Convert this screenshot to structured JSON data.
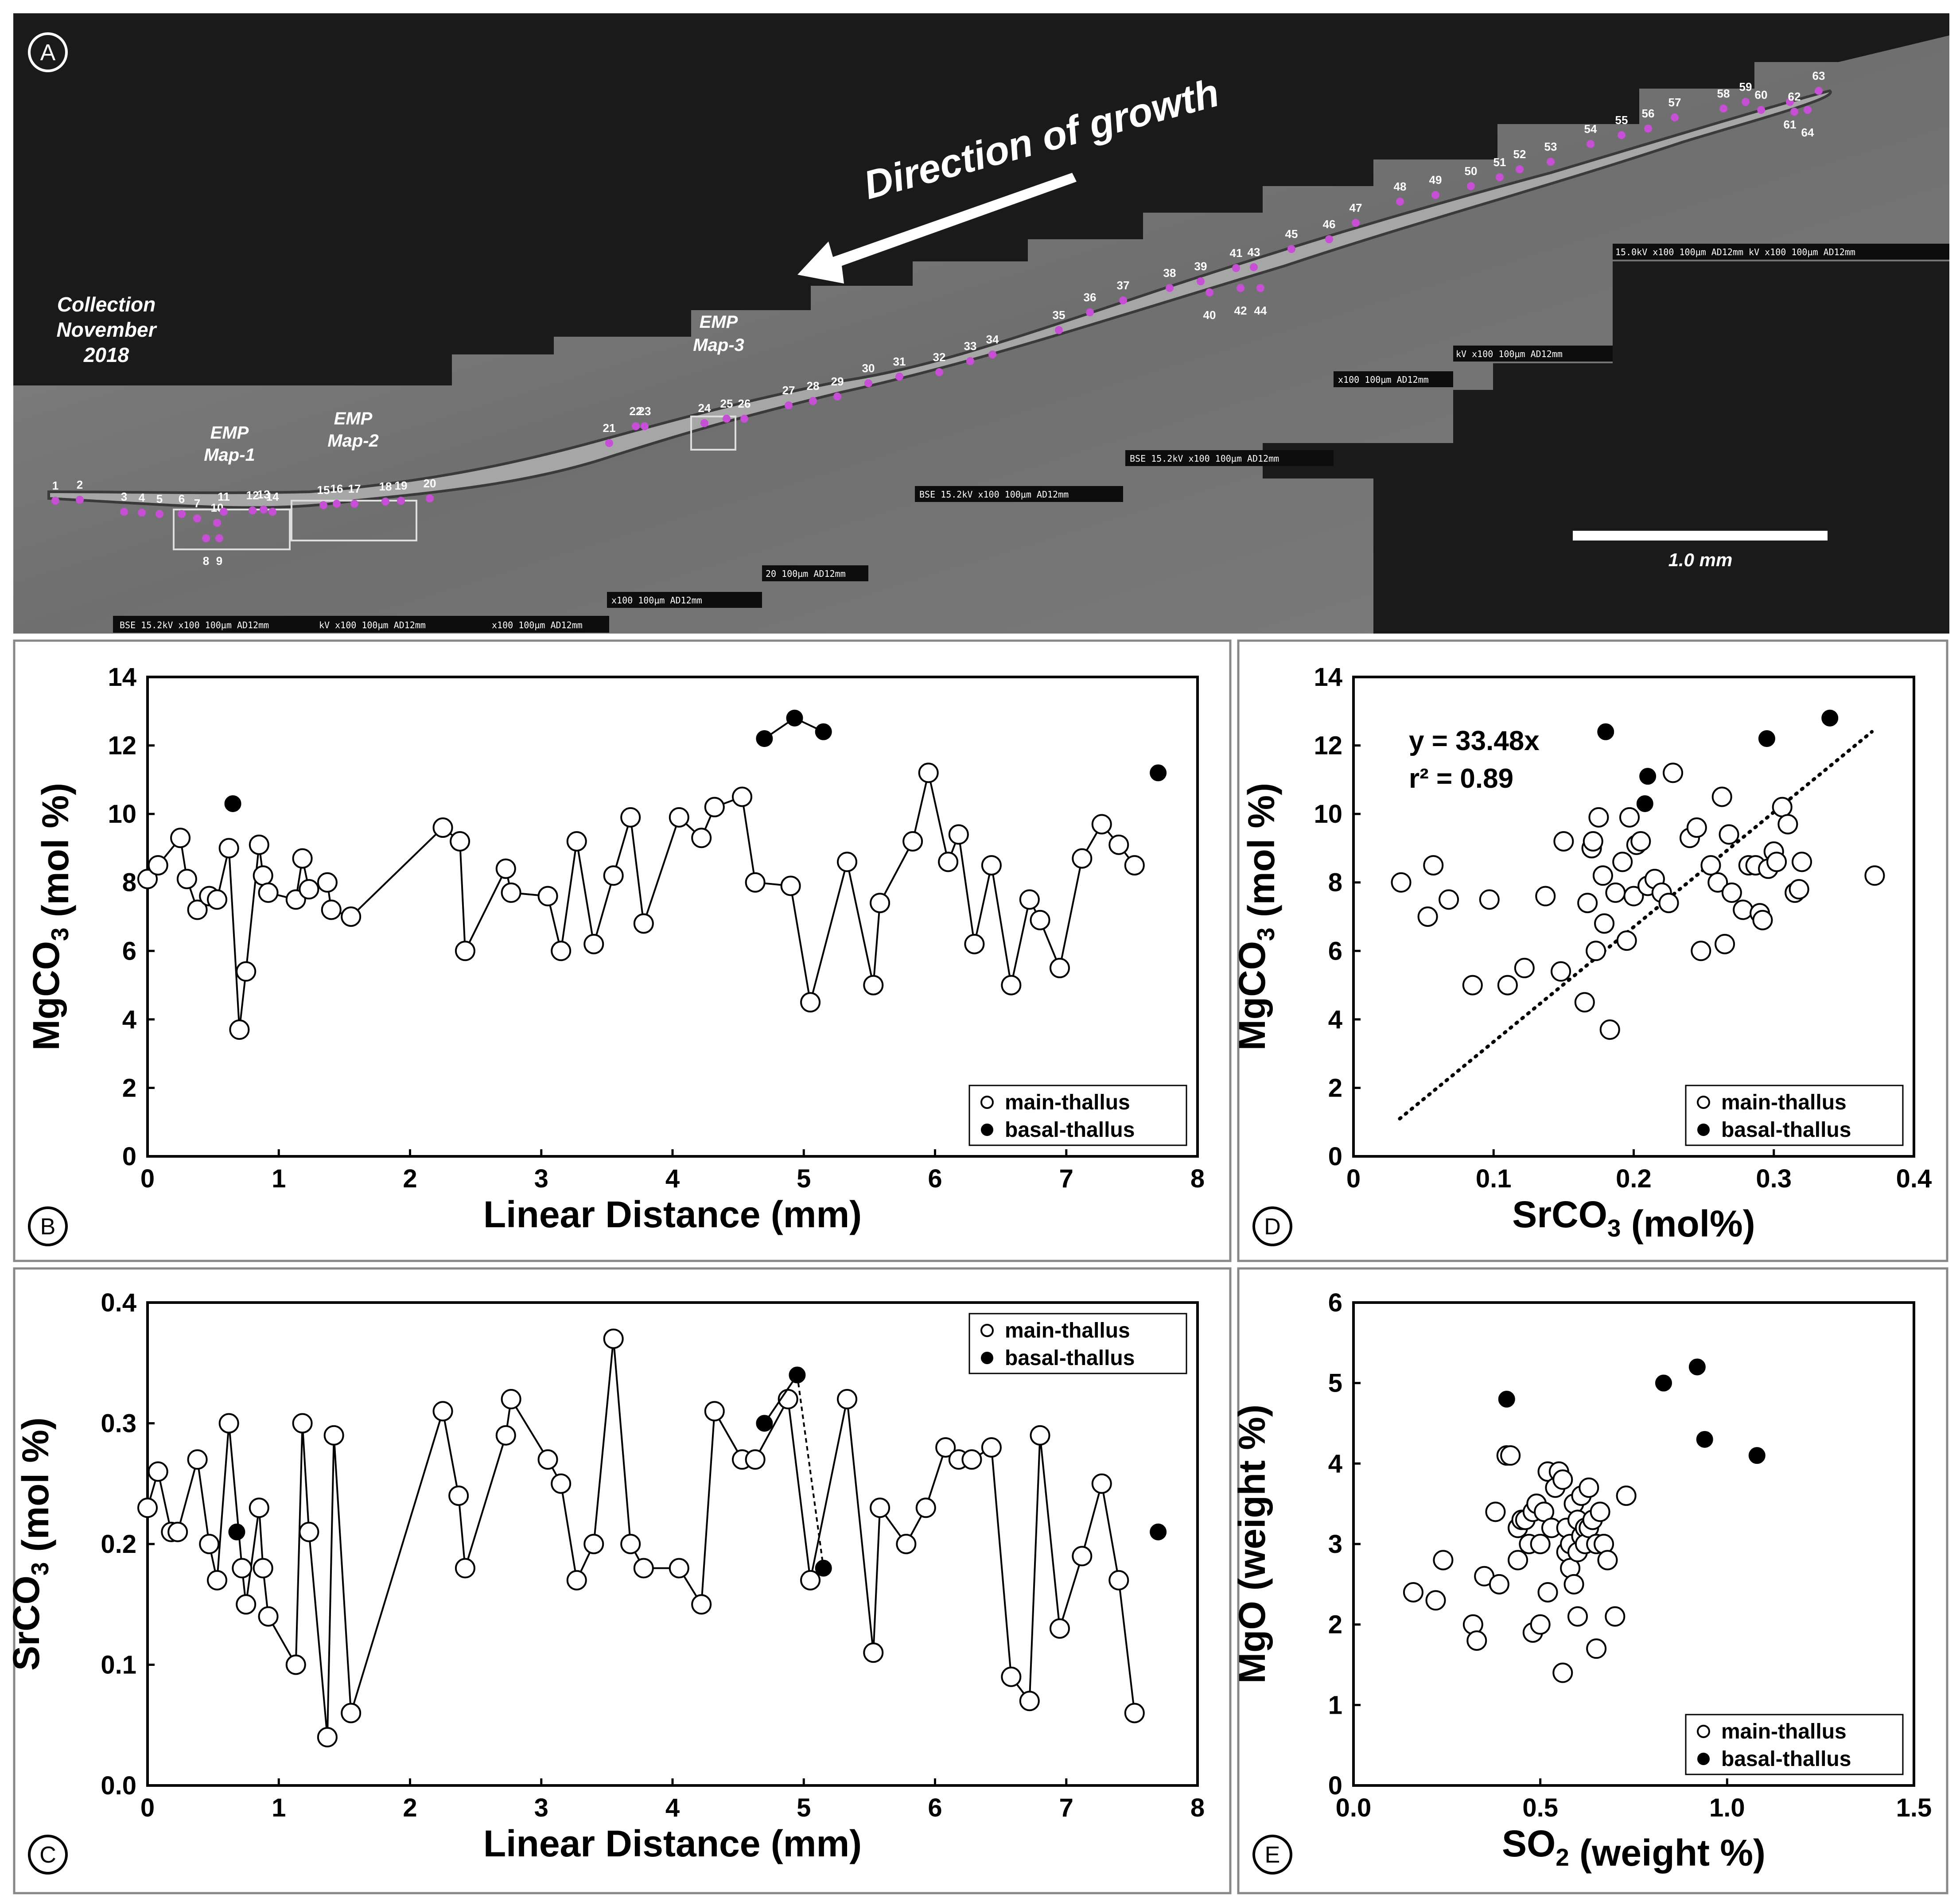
{
  "panel_labels": {
    "a": "A",
    "b": "B",
    "c": "C",
    "d": "D",
    "e": "E"
  },
  "panel_a": {
    "growth_label": "Direction of growth",
    "collection_label": [
      "Collection",
      "November",
      "2018"
    ],
    "map_labels": [
      [
        "EMP",
        "Map-1"
      ],
      [
        "EMP",
        "Map-2"
      ],
      [
        "EMP",
        "Map-3"
      ]
    ],
    "scale_bar_label": "1.0 mm",
    "point_numbers": [
      "1",
      "2",
      "3",
      "4",
      "5",
      "6",
      "7",
      "8",
      "9",
      "10",
      "11",
      "12",
      "13",
      "14",
      "15",
      "16",
      "17",
      "18",
      "19",
      "20",
      "21",
      "22",
      "23",
      "24",
      "25",
      "26",
      "27",
      "28",
      "29",
      "30",
      "31",
      "32",
      "33",
      "34",
      "35",
      "36",
      "37",
      "38",
      "39",
      "40",
      "41",
      "42",
      "43",
      "44",
      "45",
      "46",
      "47",
      "48",
      "49",
      "50",
      "51",
      "52",
      "53",
      "54",
      "55",
      "56",
      "57",
      "58",
      "59",
      "60",
      "61",
      "62",
      "63",
      "64"
    ],
    "sem_info_strips": [
      "BSE 15.2kV  x100  100µm AD12mm",
      "kV  x100  100µm AD12mm",
      "x100  100µm AD12mm",
      "x100  100µm AD12mm",
      "20  100µm AD12mm",
      "BSE 15.2kV  x100  100µm AD12mm",
      "BSE 15.2kV  x100  100µm AD12mm",
      "x100  100µm AD12mm",
      "kV  x100  100µm AD12mm",
      "15.0kV  x100  100µm AD12mm  kV  x100  100µm AD12mm"
    ],
    "colors": {
      "background": "#1a1a1a",
      "rock": "#7a7a7a",
      "thallus": "#9a9a9a",
      "points": "#c74fd6",
      "text": "#ffffff"
    }
  },
  "chart_data": [
    {
      "id": "B",
      "type": "line",
      "xlabel": "Linear Distance (mm)",
      "ylabel": "MgCO3 (mol %)",
      "xlim": [
        0,
        8
      ],
      "ylim": [
        0,
        14
      ],
      "xticks": [
        "0",
        "1",
        "2",
        "3",
        "4",
        "5",
        "6",
        "7",
        "8"
      ],
      "yticks": [
        "0",
        "2",
        "4",
        "6",
        "8",
        "10",
        "12",
        "14"
      ],
      "legend": [
        "main-thallus",
        "basal-thallus"
      ],
      "legend_position": "bottom-right",
      "series": [
        {
          "name": "main-thallus",
          "connected": true,
          "x": [
            0.0,
            0.08,
            0.25,
            0.3,
            0.38,
            0.47,
            0.53,
            0.62,
            0.7,
            0.75,
            0.85,
            0.88,
            0.92,
            1.13,
            1.18,
            1.23,
            1.37,
            1.4,
            1.55,
            2.25,
            2.38,
            2.42,
            2.73,
            2.77,
            3.05,
            3.15,
            3.27,
            3.4,
            3.55,
            3.68,
            3.78,
            4.05,
            4.22,
            4.32,
            4.53,
            4.63,
            4.9,
            5.05,
            5.33,
            5.53,
            5.58,
            5.83,
            5.95,
            6.1,
            6.18,
            6.3,
            6.43,
            6.58,
            6.72,
            6.8,
            6.95,
            7.12,
            7.27,
            7.4,
            7.52
          ],
          "y": [
            8.1,
            8.5,
            9.3,
            8.1,
            7.2,
            7.6,
            7.5,
            9.0,
            3.7,
            5.4,
            9.1,
            8.2,
            7.7,
            7.5,
            8.7,
            7.8,
            8.0,
            7.2,
            7.0,
            9.6,
            9.2,
            6.0,
            8.4,
            7.7,
            7.6,
            6.0,
            9.2,
            6.2,
            8.2,
            9.9,
            6.8,
            9.9,
            9.3,
            10.2,
            10.5,
            8.0,
            7.9,
            4.5,
            8.6,
            5.0,
            7.4,
            9.2,
            11.2,
            8.6,
            9.4,
            6.2,
            8.5,
            5.0,
            7.5,
            6.9,
            5.5,
            8.7,
            9.7,
            9.1,
            8.5
          ]
        },
        {
          "name": "basal-thallus",
          "connected": "segment-4.7-to-5.15",
          "x": [
            0.65,
            4.7,
            4.93,
            5.15,
            7.7
          ],
          "y": [
            10.3,
            12.2,
            12.8,
            12.4,
            11.2
          ]
        }
      ]
    },
    {
      "id": "C",
      "type": "line",
      "xlabel": "Linear Distance (mm)",
      "ylabel": "SrCO3 (mol %)",
      "xlim": [
        0,
        8
      ],
      "ylim": [
        0.0,
        0.4
      ],
      "xticks": [
        "0",
        "1",
        "2",
        "3",
        "4",
        "5",
        "6",
        "7",
        "8"
      ],
      "yticks": [
        "0.0",
        "0.1",
        "0.2",
        "0.3",
        "0.4"
      ],
      "legend": [
        "main-thallus",
        "basal-thallus"
      ],
      "legend_position": "top-right",
      "series": [
        {
          "name": "main-thallus",
          "connected": true,
          "x": [
            0.0,
            0.08,
            0.18,
            0.23,
            0.38,
            0.47,
            0.53,
            0.62,
            0.72,
            0.75,
            0.85,
            0.88,
            0.92,
            1.13,
            1.18,
            1.23,
            1.37,
            1.42,
            1.55,
            2.25,
            2.37,
            2.42,
            2.73,
            2.77,
            3.05,
            3.15,
            3.27,
            3.4,
            3.55,
            3.68,
            3.78,
            4.05,
            4.22,
            4.32,
            4.53,
            4.63,
            4.88,
            5.05,
            5.33,
            5.53,
            5.58,
            5.78,
            5.93,
            6.08,
            6.18,
            6.28,
            6.43,
            6.58,
            6.72,
            6.8,
            6.95,
            7.12,
            7.27,
            7.4,
            7.52
          ],
          "y": [
            0.23,
            0.26,
            0.21,
            0.21,
            0.27,
            0.2,
            0.17,
            0.3,
            0.18,
            0.15,
            0.23,
            0.18,
            0.14,
            0.1,
            0.3,
            0.21,
            0.04,
            0.29,
            0.06,
            0.31,
            0.24,
            0.18,
            0.29,
            0.32,
            0.27,
            0.25,
            0.17,
            0.2,
            0.37,
            0.2,
            0.18,
            0.18,
            0.15,
            0.31,
            0.27,
            0.27,
            0.32,
            0.17,
            0.32,
            0.11,
            0.23,
            0.2,
            0.23,
            0.28,
            0.27,
            0.27,
            0.28,
            0.09,
            0.07,
            0.29,
            0.13,
            0.19,
            0.25,
            0.17,
            0.06
          ]
        },
        {
          "name": "basal-thallus",
          "connected": "dashed-4.95-to-5.15",
          "x": [
            0.68,
            4.7,
            4.95,
            5.15,
            7.7
          ],
          "y": [
            0.21,
            0.3,
            0.34,
            0.18,
            0.21
          ]
        }
      ]
    },
    {
      "id": "D",
      "type": "scatter",
      "xlabel": "SrCO3 (mol%)",
      "ylabel": "MgCO3 (mol %)",
      "xlim": [
        0,
        0.4
      ],
      "ylim": [
        0,
        14
      ],
      "xticks": [
        "0",
        "0.1",
        "0.2",
        "0.3",
        "0.4"
      ],
      "yticks": [
        "0",
        "2",
        "4",
        "6",
        "8",
        "10",
        "12",
        "14"
      ],
      "annotation": [
        "y = 33.48x",
        "r² = 0.89"
      ],
      "trendline": {
        "x": [
          0.033,
          0.37
        ],
        "y": [
          1.1,
          12.4
        ],
        "style": "dotted"
      },
      "legend": [
        "main-thallus",
        "basal-thallus"
      ],
      "legend_position": "bottom-right",
      "series": [
        {
          "name": "main-thallus",
          "x": [
            0.034,
            0.053,
            0.057,
            0.068,
            0.085,
            0.097,
            0.11,
            0.122,
            0.137,
            0.148,
            0.15,
            0.165,
            0.167,
            0.17,
            0.171,
            0.173,
            0.175,
            0.178,
            0.179,
            0.183,
            0.187,
            0.192,
            0.195,
            0.197,
            0.2,
            0.202,
            0.205,
            0.21,
            0.215,
            0.22,
            0.225,
            0.228,
            0.24,
            0.245,
            0.248,
            0.255,
            0.26,
            0.263,
            0.265,
            0.268,
            0.27,
            0.278,
            0.282,
            0.287,
            0.29,
            0.292,
            0.296,
            0.3,
            0.302,
            0.306,
            0.31,
            0.315,
            0.318,
            0.32,
            0.372
          ],
          "y": [
            8.0,
            7.0,
            8.5,
            7.5,
            5.0,
            7.5,
            5.0,
            5.5,
            7.6,
            5.4,
            9.2,
            4.5,
            7.4,
            9.0,
            9.2,
            6.0,
            9.9,
            8.2,
            6.8,
            3.7,
            7.7,
            8.6,
            6.3,
            9.9,
            7.6,
            9.1,
            9.2,
            7.9,
            8.1,
            7.7,
            7.4,
            11.2,
            9.3,
            9.6,
            6.0,
            8.5,
            8.0,
            10.5,
            6.2,
            9.4,
            7.7,
            7.2,
            8.5,
            8.5,
            7.1,
            6.9,
            8.4,
            8.9,
            8.6,
            10.2,
            9.7,
            7.7,
            7.8,
            8.6,
            8.2
          ]
        },
        {
          "name": "basal-thallus",
          "x": [
            0.18,
            0.208,
            0.21,
            0.295,
            0.34
          ],
          "y": [
            12.4,
            10.3,
            11.1,
            12.2,
            12.8
          ]
        }
      ]
    },
    {
      "id": "E",
      "type": "scatter",
      "xlabel": "SO2 (weight %)",
      "ylabel": "MgO (weight %)",
      "xlim": [
        0.0,
        1.5
      ],
      "ylim": [
        0,
        6
      ],
      "xticks": [
        "0.0",
        "0.5",
        "1.0",
        "1.5"
      ],
      "yticks": [
        "0",
        "1",
        "2",
        "3",
        "4",
        "5",
        "6"
      ],
      "legend": [
        "main-thallus",
        "basal-thallus"
      ],
      "legend_position": "bottom-right",
      "series": [
        {
          "name": "main-thallus",
          "x": [
            0.16,
            0.22,
            0.24,
            0.32,
            0.33,
            0.35,
            0.38,
            0.39,
            0.41,
            0.42,
            0.44,
            0.44,
            0.45,
            0.46,
            0.47,
            0.48,
            0.48,
            0.49,
            0.5,
            0.5,
            0.51,
            0.52,
            0.52,
            0.53,
            0.54,
            0.55,
            0.56,
            0.56,
            0.57,
            0.57,
            0.58,
            0.58,
            0.59,
            0.59,
            0.6,
            0.6,
            0.6,
            0.61,
            0.61,
            0.62,
            0.62,
            0.63,
            0.63,
            0.64,
            0.65,
            0.65,
            0.66,
            0.67,
            0.68,
            0.7,
            0.73
          ],
          "y": [
            2.4,
            2.3,
            2.8,
            2.0,
            1.8,
            2.6,
            3.4,
            2.5,
            4.1,
            4.1,
            2.8,
            3.2,
            3.3,
            3.3,
            3.0,
            3.4,
            1.9,
            3.5,
            3.0,
            2.0,
            3.4,
            3.9,
            2.4,
            3.2,
            3.7,
            3.9,
            3.8,
            1.4,
            3.2,
            2.9,
            2.7,
            3.0,
            3.5,
            2.5,
            3.3,
            2.9,
            2.1,
            3.1,
            3.6,
            3.2,
            3.0,
            3.7,
            3.2,
            3.3,
            1.7,
            3.0,
            3.4,
            3.0,
            2.8,
            2.1,
            3.6
          ]
        },
        {
          "name": "basal-thallus",
          "x": [
            0.41,
            0.83,
            0.92,
            0.94,
            1.08
          ],
          "y": [
            4.8,
            5.0,
            5.2,
            4.3,
            4.1
          ]
        }
      ]
    }
  ]
}
